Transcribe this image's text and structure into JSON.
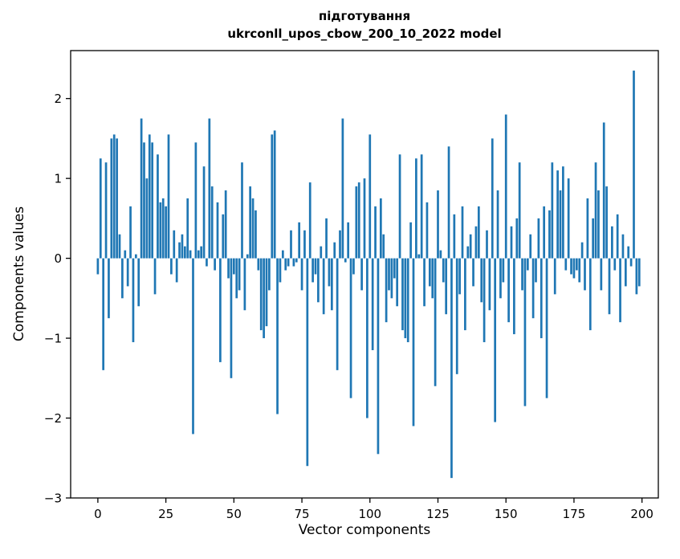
{
  "figure": {
    "title_line1": "підготування",
    "title_line2": "ukrconll_upos_cbow_200_10_2022 model"
  },
  "chart_data": {
    "type": "bar",
    "title": "підготування\nukrconll_upos_cbow_200_10_2022 model",
    "xlabel": "Vector components",
    "ylabel": "Components values",
    "xlim": [
      -10,
      206
    ],
    "ylim": [
      -3.0,
      2.6
    ],
    "xticks": [
      0,
      25,
      50,
      75,
      100,
      125,
      150,
      175,
      200
    ],
    "yticks": [
      -3,
      -2,
      -1,
      0,
      1,
      2
    ],
    "grid": false,
    "legend": "none",
    "bar_color": "#1f77b4",
    "bar_width": 0.8,
    "x_start": 0,
    "values": [
      -0.2,
      1.25,
      -1.4,
      1.2,
      -0.75,
      1.5,
      1.55,
      1.5,
      0.3,
      -0.5,
      0.1,
      -0.35,
      0.65,
      -1.05,
      0.05,
      -0.6,
      1.75,
      1.45,
      1.0,
      1.55,
      1.45,
      -0.45,
      1.3,
      0.7,
      0.75,
      0.65,
      1.55,
      -0.2,
      0.35,
      -0.3,
      0.2,
      0.3,
      0.15,
      0.75,
      0.1,
      -2.2,
      1.45,
      0.1,
      0.15,
      1.15,
      -0.1,
      1.75,
      0.9,
      -0.15,
      0.7,
      -1.3,
      0.55,
      0.85,
      -0.25,
      -1.5,
      -0.2,
      -0.5,
      -0.4,
      1.2,
      -0.65,
      0.05,
      0.9,
      0.75,
      0.6,
      -0.15,
      -0.9,
      -1.0,
      -0.85,
      -0.4,
      1.55,
      1.6,
      -1.95,
      -0.3,
      0.1,
      -0.15,
      -0.1,
      0.35,
      -0.1,
      -0.05,
      0.45,
      -0.4,
      0.35,
      -2.6,
      0.95,
      -0.3,
      -0.2,
      -0.55,
      0.15,
      -0.7,
      0.5,
      -0.35,
      -0.65,
      0.2,
      -1.4,
      0.35,
      1.75,
      -0.05,
      0.45,
      -1.75,
      -0.2,
      0.9,
      0.95,
      -0.4,
      1.0,
      -2.0,
      1.55,
      -1.15,
      0.65,
      -2.45,
      0.75,
      0.3,
      -0.8,
      -0.4,
      -0.5,
      -0.25,
      -0.6,
      1.3,
      -0.9,
      -1.0,
      -1.05,
      0.45,
      -2.1,
      1.25,
      0.05,
      1.3,
      -0.6,
      0.7,
      -0.35,
      -0.5,
      -1.6,
      0.85,
      0.1,
      -0.3,
      -0.7,
      1.4,
      -2.75,
      0.55,
      -1.45,
      -0.45,
      0.65,
      -0.9,
      0.15,
      0.3,
      -0.35,
      0.4,
      0.65,
      -0.55,
      -1.05,
      0.35,
      -0.65,
      1.5,
      -2.05,
      0.85,
      -0.5,
      -0.3,
      1.8,
      -0.8,
      0.4,
      -0.95,
      0.5,
      1.2,
      -0.4,
      -1.85,
      -0.15,
      0.3,
      -0.75,
      -0.3,
      0.5,
      -1.0,
      0.65,
      -1.75,
      0.6,
      1.2,
      -0.45,
      1.1,
      0.85,
      1.15,
      -0.15,
      1.0,
      -0.2,
      -0.25,
      -0.15,
      -0.3,
      0.2,
      -0.4,
      0.75,
      -0.9,
      0.5,
      1.2,
      0.85,
      -0.4,
      1.7,
      0.9,
      -0.7,
      0.4,
      -0.15,
      0.55,
      -0.8,
      0.3,
      -0.35,
      0.15,
      -0.1,
      2.35,
      -0.45,
      -0.35
    ]
  }
}
